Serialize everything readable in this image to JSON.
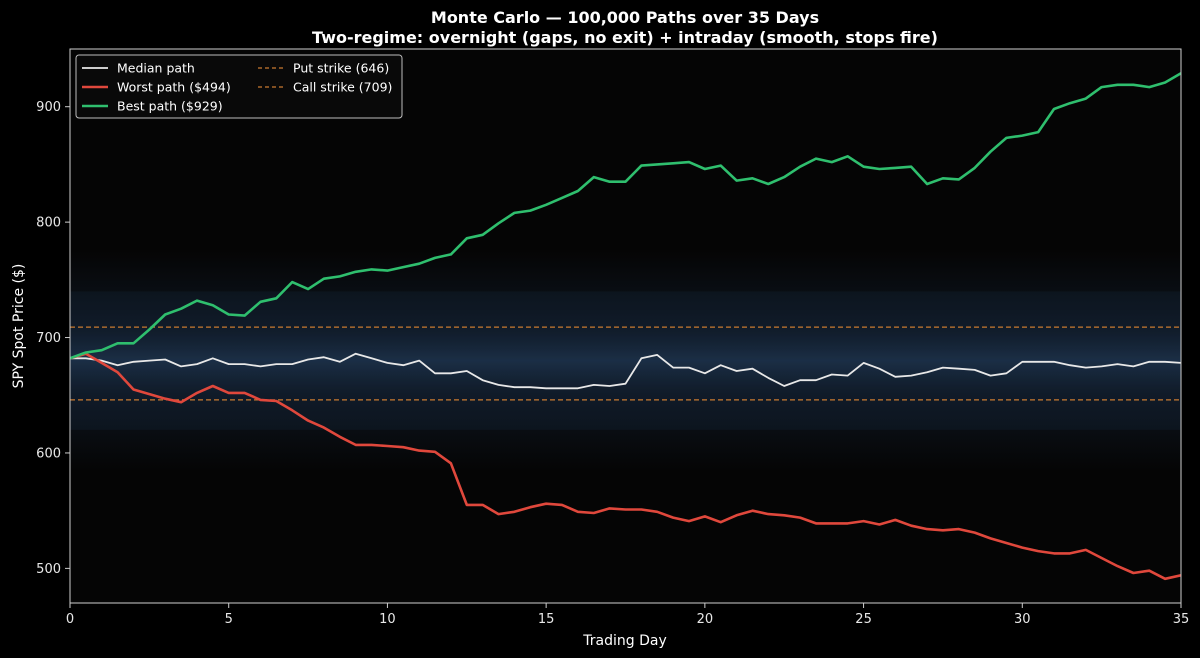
{
  "chart_data": {
    "type": "line",
    "title": "Monte Carlo — 100,000 Paths over 35 Days",
    "subtitle": "Two-regime: overnight (gaps, no exit) + intraday (smooth, stops fire)",
    "xlabel": "Trading Day",
    "ylabel": "SPY Spot Price ($)",
    "xlim": [
      0,
      35
    ],
    "ylim": [
      470,
      950
    ],
    "xticks": [
      0,
      5,
      10,
      15,
      20,
      25,
      30,
      35
    ],
    "yticks": [
      500,
      600,
      700,
      800,
      900
    ],
    "legend_position": "top-left",
    "legend_entries": [
      {
        "label": "Median path",
        "color": "#e8e8e8",
        "style": "solid"
      },
      {
        "label": "Worst path ($494)",
        "color": "#e0483c",
        "style": "solid"
      },
      {
        "label": "Best path ($929)",
        "color": "#2fbf6e",
        "style": "solid"
      },
      {
        "label": "Put strike (646)",
        "color": "#c97a30",
        "style": "dashed"
      },
      {
        "label": "Call strike (709)",
        "color": "#c97a30",
        "style": "dashed"
      }
    ],
    "x": [
      0,
      0.5,
      1,
      1.5,
      2,
      2.5,
      3,
      3.5,
      4,
      4.5,
      5,
      5.5,
      6,
      6.5,
      7,
      7.5,
      8,
      8.5,
      9,
      9.5,
      10,
      10.5,
      11,
      11.5,
      12,
      12.5,
      13,
      13.5,
      14,
      14.5,
      15,
      15.5,
      16,
      16.5,
      17,
      17.5,
      18,
      18.5,
      19,
      19.5,
      20,
      20.5,
      21,
      21.5,
      22,
      22.5,
      23,
      23.5,
      24,
      24.5,
      25,
      25.5,
      26,
      26.5,
      27,
      27.5,
      28,
      28.5,
      29,
      29.5,
      30,
      30.5,
      31,
      31.5,
      32,
      32.5,
      33,
      33.5,
      34,
      34.5,
      35
    ],
    "series": [
      {
        "name": "Median path",
        "color": "#e8e8e8",
        "values": [
          682,
          682,
          680,
          676,
          679,
          680,
          681,
          675,
          677,
          682,
          677,
          677,
          675,
          677,
          677,
          681,
          683,
          679,
          686,
          682,
          678,
          676,
          680,
          669,
          669,
          671,
          663,
          659,
          657,
          657,
          656,
          656,
          656,
          659,
          658,
          660,
          682,
          685,
          674,
          674,
          669,
          676,
          671,
          673,
          665,
          658,
          663,
          663,
          668,
          667,
          678,
          673,
          666,
          667,
          670,
          674,
          673,
          672,
          667,
          669,
          679,
          679,
          679,
          676,
          674,
          675,
          677,
          675,
          679,
          679,
          678
        ]
      },
      {
        "name": "Worst path ($494)",
        "color": "#e0483c",
        "values": [
          682,
          686,
          678,
          670,
          655,
          651,
          647,
          644,
          652,
          658,
          652,
          652,
          646,
          645,
          637,
          628,
          622,
          614,
          607,
          607,
          606,
          605,
          602,
          601,
          591,
          555,
          555,
          547,
          549,
          553,
          556,
          555,
          549,
          548,
          552,
          551,
          551,
          549,
          544,
          541,
          545,
          540,
          546,
          550,
          547,
          546,
          544,
          539,
          539,
          539,
          541,
          538,
          542,
          537,
          534,
          533,
          534,
          531,
          526,
          522,
          518,
          515,
          513,
          513,
          516,
          509,
          502,
          496,
          498,
          491,
          494
        ]
      },
      {
        "name": "Best path ($929)",
        "color": "#2fbf6e",
        "values": [
          682,
          687,
          689,
          695,
          695,
          707,
          720,
          725,
          732,
          728,
          720,
          719,
          731,
          734,
          748,
          742,
          751,
          753,
          757,
          759,
          758,
          761,
          764,
          769,
          772,
          786,
          789,
          799,
          808,
          810,
          815,
          821,
          827,
          839,
          835,
          835,
          849,
          850,
          851,
          852,
          846,
          849,
          836,
          838,
          833,
          839,
          848,
          855,
          852,
          857,
          848,
          846,
          847,
          848,
          833,
          838,
          837,
          847,
          861,
          873,
          875,
          878,
          898,
          903,
          907,
          917,
          919,
          919,
          917,
          921,
          929
        ]
      }
    ],
    "reference_lines": [
      {
        "name": "Put strike (646)",
        "y": 646,
        "color": "#c97a30",
        "style": "dashed"
      },
      {
        "name": "Call strike (709)",
        "y": 709,
        "color": "#c97a30",
        "style": "dashed"
      }
    ],
    "background_band": {
      "center": 680,
      "spread_inner": 60,
      "spread_outer": 95,
      "color": "#2a4a70"
    }
  }
}
